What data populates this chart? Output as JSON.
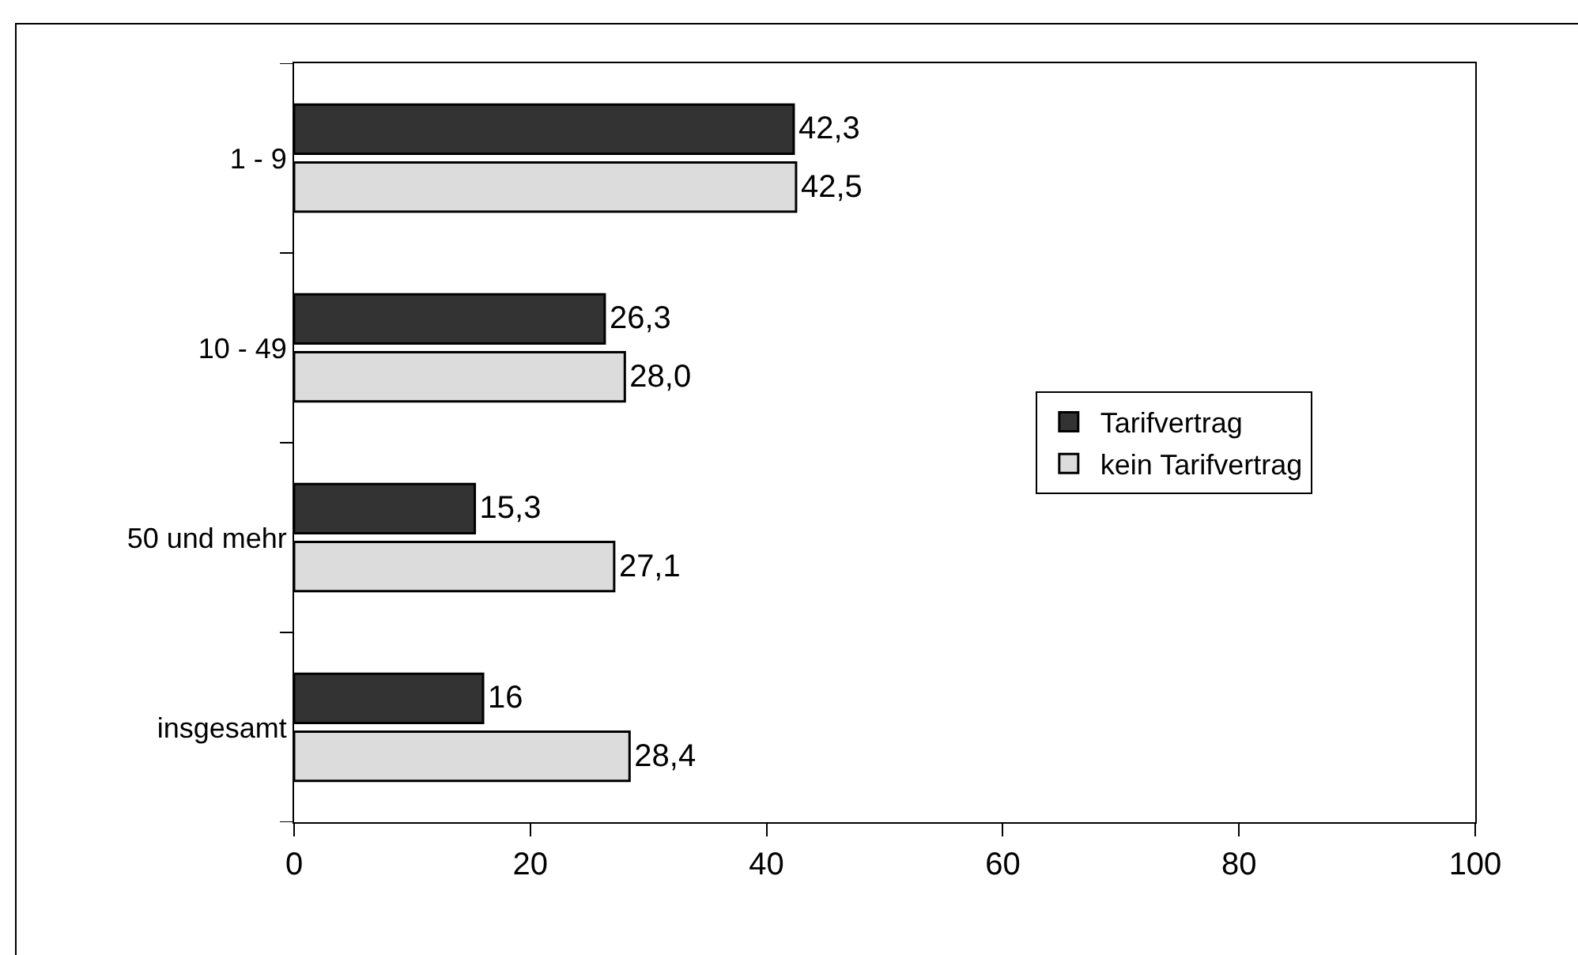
{
  "chart_data": {
    "type": "bar",
    "orientation": "horizontal",
    "categories": [
      "1 - 9",
      "10 - 49",
      "50 und mehr",
      "insgesamt"
    ],
    "series": [
      {
        "name": "Tarifvertrag",
        "color": "#333333",
        "values": [
          42.3,
          26.3,
          15.3,
          16
        ],
        "value_labels": [
          "42,3",
          "26,3",
          "15,3",
          "16"
        ]
      },
      {
        "name": "kein Tarifvertrag",
        "color": "#dcdcdc",
        "values": [
          42.5,
          28.0,
          27.1,
          28.4
        ],
        "value_labels": [
          "42,5",
          "28,0",
          "27,1",
          "28,4"
        ]
      }
    ],
    "xlim": [
      0,
      100
    ],
    "xticks": [
      0,
      20,
      40,
      60,
      80,
      100
    ],
    "grid": false,
    "legend": "right"
  }
}
